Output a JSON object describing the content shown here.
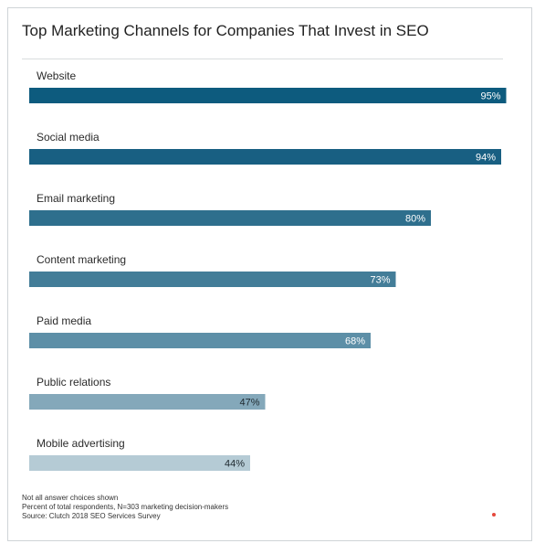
{
  "chart_data": {
    "type": "bar",
    "orientation": "horizontal",
    "title": "Top Marketing Channels for Companies That Invest in SEO",
    "categories": [
      "Website",
      "Social media",
      "Email marketing",
      "Content marketing",
      "Paid media",
      "Public relations",
      "Mobile advertising"
    ],
    "values": [
      95,
      94,
      80,
      73,
      68,
      47,
      44
    ],
    "value_labels": [
      "95%",
      "94%",
      "80%",
      "73%",
      "68%",
      "47%",
      "44%"
    ],
    "xlim": [
      0,
      100
    ],
    "grid": false,
    "legend": "none",
    "colors": [
      "#0d5b7e",
      "#185f82",
      "#2e6f8d",
      "#437d98",
      "#5d8fa7",
      "#84a8ba",
      "#b5cbd5"
    ],
    "label_colors": [
      "#ffffff",
      "#ffffff",
      "#ffffff",
      "#ffffff",
      "#ffffff",
      "#1f2a30",
      "#1f2a30"
    ]
  },
  "footnotes": [
    "Not all answer choices shown",
    "Percent of total respondents, N=303 marketing decision-makers",
    "Source: Clutch 2018 SEO Services Survey"
  ],
  "brand": {
    "logo_text": "Clutch",
    "color": "#1d2b36",
    "accent": "#e5483c"
  }
}
